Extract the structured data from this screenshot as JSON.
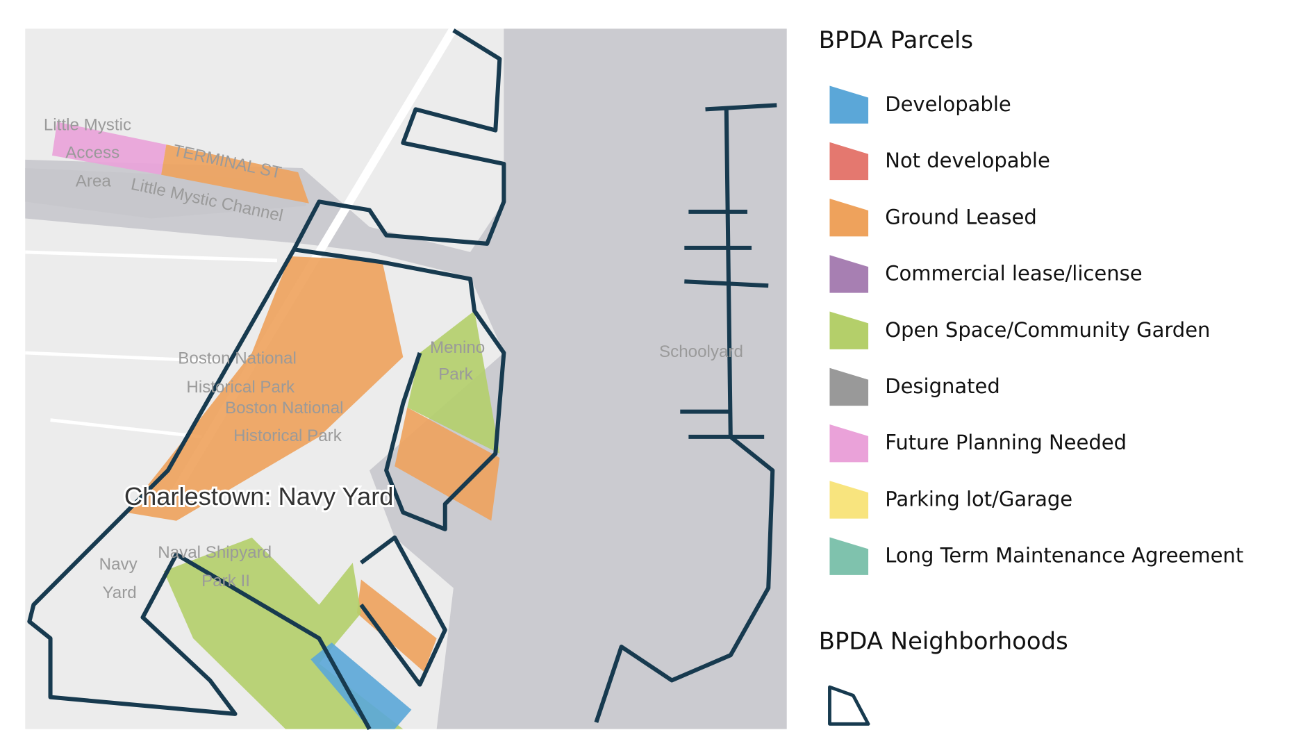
{
  "legend": {
    "parcels_title": "BPDA Parcels",
    "items": [
      {
        "label": "Developable",
        "color": "#5ba7d8"
      },
      {
        "label": "Not developable",
        "color": "#e4786f"
      },
      {
        "label": "Ground Leased",
        "color": "#eea25c"
      },
      {
        "label": "Commercial lease/license",
        "color": "#a77fb2"
      },
      {
        "label": "Open Space/Community Garden",
        "color": "#b4cf6a"
      },
      {
        "label": "Designated",
        "color": "#999999"
      },
      {
        "label": "Future Planning Needed",
        "color": "#eaa2d9"
      },
      {
        "label": "Parking lot/Garage",
        "color": "#f8e47e"
      },
      {
        "label": "Long Term Maintenance Agreement",
        "color": "#7fc2ad"
      }
    ],
    "neighborhoods_title": "BPDA Neighborhoods"
  },
  "map": {
    "neighborhood_label": "Charlestown: Navy Yard",
    "labels": [
      "Little Mystic",
      "Access",
      "Area",
      "TERMINAL ST",
      "Little Mystic Channel",
      "Boston National",
      "Historical Park",
      "Boston National",
      "Historical Park",
      "Navy",
      "Yard",
      "Naval Shipyard",
      "Park II",
      "Menino",
      "Park",
      "Schoolyard"
    ]
  }
}
